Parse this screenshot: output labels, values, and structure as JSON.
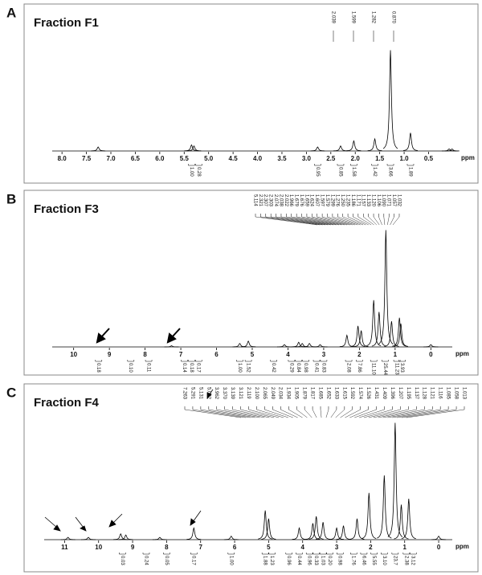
{
  "chart_data": [
    {
      "type": "spectrum",
      "panel": "A",
      "title": "Fraction F1",
      "x_label": "ppm",
      "xlim": [
        8.2,
        -0.1
      ],
      "ylim": [
        0,
        110
      ],
      "xticks": [
        {
          "value": 8,
          "label": "8.0"
        },
        7.5,
        {
          "value": 7,
          "label": "7.0"
        },
        6.5,
        {
          "value": 6,
          "label": "6.0"
        },
        5.5,
        {
          "value": 5,
          "label": "5.0"
        },
        4.5,
        {
          "value": 4,
          "label": "4.0"
        },
        3.5,
        {
          "value": 3,
          "label": "3.0"
        },
        2.5,
        {
          "value": 2,
          "label": "2.0"
        },
        1.5,
        {
          "value": 1,
          "label": "1.0"
        },
        0.5
      ],
      "peaks": {
        "ppm": [
          7.26,
          5.35,
          5.3,
          2.77,
          2.3,
          2.03,
          1.6,
          1.28,
          0.87,
          0.08,
          0.02
        ],
        "heights": [
          4,
          6,
          5,
          4,
          5,
          10,
          12,
          100,
          18,
          2,
          2
        ]
      },
      "peak_labels": [
        "2.039",
        "1.599",
        "1.282",
        "0.870"
      ],
      "integrals": {
        "ppm": [
          5.35,
          5.2,
          2.77,
          2.3,
          2.03,
          1.6,
          1.28,
          0.87
        ],
        "labels": [
          "1.00",
          "0.28",
          "0.95",
          "0.85",
          "1.58",
          "1.42",
          "3.66",
          "1.89"
        ]
      }
    },
    {
      "type": "spectrum",
      "panel": "B",
      "title": "Fraction F3",
      "x_label": "ppm",
      "xlim": [
        10.6,
        -0.6
      ],
      "ylim": [
        0,
        110
      ],
      "xticks": [
        10,
        9,
        8,
        7,
        6,
        5,
        4,
        3,
        2,
        1,
        0
      ],
      "peaks": {
        "ppm": [
          7.26,
          5.35,
          5.11,
          4.1,
          3.7,
          3.6,
          3.4,
          3.1,
          2.35,
          2.04,
          1.95,
          1.6,
          1.45,
          1.26,
          1.1,
          0.88,
          0.84,
          0.0
        ],
        "heights": [
          1,
          3,
          5,
          2,
          4,
          3,
          3,
          2,
          10,
          18,
          14,
          40,
          30,
          100,
          22,
          25,
          20,
          2
        ]
      },
      "peak_labels": [
        "5.114",
        "2.321",
        "2.307",
        "2.303",
        "2.074",
        "2.038",
        "2.022",
        "1.966",
        "1.679",
        "1.676",
        "1.659",
        "1.624",
        "1.607",
        "1.597",
        "1.579",
        "1.299",
        "1.276",
        "1.250",
        "1.235",
        "1.186",
        "1.171",
        "1.157",
        "1.133",
        "1.120",
        "1.106",
        "1.090",
        "1.071",
        "1.057",
        "1.032"
      ],
      "integrals": {
        "ppm": [
          9.3,
          8.4,
          7.9,
          6.9,
          6.7,
          6.5,
          5.35,
          5.11,
          4.4,
          3.9,
          3.7,
          3.5,
          3.2,
          3.0,
          2.3,
          2.0,
          1.6,
          1.28,
          0.95,
          0.8
        ],
        "labels": [
          "0.18",
          "0.10",
          "0.11",
          "0.14",
          "0.18",
          "0.17",
          "1.00",
          "1.52",
          "0.42",
          "0.29",
          "0.84",
          "0.98",
          "0.41",
          "0.83",
          "2.08",
          "7.86",
          "11.10",
          "25.44",
          "11.23",
          "3.93"
        ]
      }
    },
    {
      "type": "spectrum",
      "panel": "C",
      "title": "Fraction F4",
      "x_label": "ppm",
      "xlim": [
        11.6,
        -0.4
      ],
      "ylim": [
        0,
        110
      ],
      "xticks": [
        11,
        10,
        9,
        8,
        7,
        6,
        5,
        4,
        3,
        2,
        1,
        0
      ],
      "peaks": {
        "ppm": [
          10.9,
          10.3,
          9.35,
          9.2,
          8.2,
          7.2,
          6.1,
          5.1,
          5.0,
          4.1,
          3.7,
          3.6,
          3.4,
          3.0,
          2.8,
          2.4,
          2.05,
          1.6,
          1.28,
          1.1,
          0.88,
          0.0
        ],
        "heights": [
          2,
          2,
          5,
          4,
          2,
          10,
          3,
          25,
          18,
          10,
          14,
          20,
          15,
          10,
          12,
          18,
          40,
          55,
          100,
          30,
          35,
          3
        ]
      },
      "peak_labels": [
        "7.263",
        "5.291",
        "5.131",
        "5.002",
        "3.962",
        "3.370",
        "3.139",
        "3.121",
        "2.119",
        "2.100",
        "2.065",
        "2.049",
        "2.034",
        "1.934",
        "1.905",
        "1.879",
        "1.817",
        "1.685",
        "1.652",
        "1.633",
        "1.615",
        "1.592",
        "1.574",
        "1.526",
        "1.431",
        "1.409",
        "1.396",
        "1.207",
        "1.195",
        "1.137",
        "1.128",
        "1.121",
        "1.116",
        "1.085",
        "1.058",
        "1.013"
      ],
      "integrals": {
        "ppm": [
          9.3,
          8.6,
          8.0,
          7.2,
          6.1,
          5.1,
          4.9,
          4.4,
          4.1,
          3.8,
          3.6,
          3.4,
          3.2,
          2.9,
          2.5,
          2.2,
          1.9,
          1.6,
          1.28,
          0.95,
          0.75
        ],
        "labels": [
          "0.03",
          "0.24",
          "0.05",
          "0.17",
          "1.00",
          "1.88",
          "1.23",
          "0.96",
          "0.44",
          "0.96",
          "0.33",
          "1.03",
          "0.20",
          "0.98",
          "1.76",
          "6.46",
          "5.55",
          "3.10",
          "23.7",
          "2.38",
          "3.12"
        ]
      }
    }
  ]
}
